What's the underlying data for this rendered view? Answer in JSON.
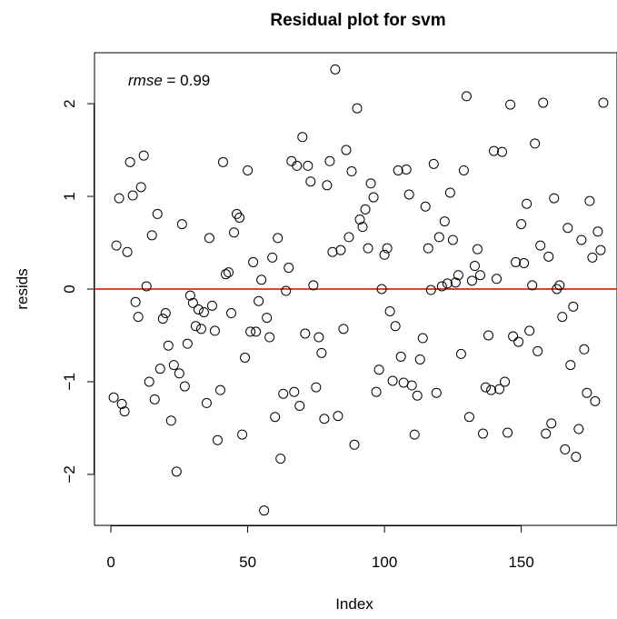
{
  "chart_data": {
    "type": "scatter",
    "title": "Residual plot for svm",
    "xlabel": "Index",
    "ylabel": "resids",
    "xlim": [
      -6,
      185
    ],
    "ylim": [
      -2.55,
      2.55
    ],
    "x_ticks": [
      0,
      50,
      100,
      150
    ],
    "x_tick_labels": [
      "0",
      "50",
      "100",
      "150"
    ],
    "y_ticks": [
      -2,
      -1,
      0,
      1,
      2
    ],
    "y_tick_labels": [
      "−2",
      "−1",
      "0",
      "1",
      "2"
    ],
    "grid": false,
    "reference_line": {
      "y": 0,
      "color": "#e8201c"
    },
    "annotation": {
      "var": "rmse",
      "eq": " = 0.99"
    },
    "point_color": "#000000",
    "x": [
      1,
      2,
      3,
      4,
      5,
      6,
      7,
      8,
      9,
      10,
      11,
      12,
      13,
      14,
      15,
      16,
      17,
      18,
      19,
      20,
      21,
      22,
      23,
      24,
      25,
      26,
      27,
      28,
      29,
      30,
      31,
      32,
      33,
      34,
      35,
      36,
      37,
      38,
      39,
      40,
      41,
      42,
      43,
      44,
      45,
      46,
      47,
      48,
      49,
      50,
      51,
      52,
      53,
      54,
      55,
      56,
      57,
      58,
      59,
      60,
      61,
      62,
      63,
      64,
      65,
      66,
      67,
      68,
      69,
      70,
      71,
      72,
      73,
      74,
      75,
      76,
      77,
      78,
      79,
      80,
      81,
      82,
      83,
      84,
      85,
      86,
      87,
      88,
      89,
      90,
      91,
      92,
      93,
      94,
      95,
      96,
      97,
      98,
      99,
      100,
      101,
      102,
      103,
      104,
      105,
      106,
      107,
      108,
      109,
      110,
      111,
      112,
      113,
      114,
      115,
      116,
      117,
      118,
      119,
      120,
      121,
      122,
      123,
      124,
      125,
      126,
      127,
      128,
      129,
      130,
      131,
      132,
      133,
      134,
      135,
      136,
      137,
      138,
      139,
      140,
      141,
      142,
      143,
      144,
      145,
      146,
      147,
      148,
      149,
      150,
      151,
      152,
      153,
      154,
      155,
      156,
      157,
      158,
      159,
      160,
      161,
      162,
      163,
      164,
      165,
      166,
      167,
      168,
      169,
      170,
      171,
      172,
      173,
      174,
      175,
      176,
      177,
      178,
      179,
      180
    ],
    "y": [
      -1.17,
      0.47,
      0.98,
      -1.24,
      -1.32,
      0.4,
      1.37,
      1.01,
      -0.14,
      -0.3,
      1.1,
      1.44,
      0.03,
      -1.0,
      0.58,
      -1.19,
      0.81,
      -0.86,
      -0.32,
      -0.26,
      -0.61,
      -1.42,
      -0.82,
      -1.97,
      -0.91,
      0.7,
      -1.05,
      -0.59,
      -0.07,
      -0.15,
      -0.4,
      -0.22,
      -0.43,
      -0.25,
      -1.23,
      0.55,
      -0.18,
      -0.45,
      -1.63,
      -1.09,
      1.37,
      0.16,
      0.18,
      -0.26,
      0.61,
      0.81,
      0.77,
      -1.57,
      -0.74,
      1.28,
      -0.46,
      0.29,
      -0.46,
      -0.13,
      0.1,
      -2.39,
      -0.31,
      -0.52,
      0.34,
      -1.38,
      0.55,
      -1.83,
      -1.13,
      -0.02,
      0.23,
      1.38,
      -1.11,
      1.33,
      -1.26,
      1.64,
      -0.48,
      1.33,
      1.16,
      0.04,
      -1.06,
      -0.52,
      -0.69,
      -1.4,
      1.12,
      1.38,
      0.4,
      2.37,
      -1.37,
      0.42,
      -0.43,
      1.5,
      0.56,
      1.27,
      -1.68,
      1.95,
      0.75,
      0.67,
      0.86,
      0.44,
      1.14,
      0.99,
      -1.11,
      -0.87,
      0.0,
      0.37,
      0.44,
      -0.24,
      -0.99,
      -0.4,
      1.28,
      -0.73,
      -1.01,
      1.29,
      1.02,
      -1.04,
      -1.57,
      -1.15,
      -0.76,
      -0.53,
      0.89,
      0.44,
      -0.01,
      1.35,
      -1.12,
      0.56,
      0.03,
      0.73,
      0.06,
      1.04,
      0.53,
      0.07,
      0.15,
      -0.7,
      1.28,
      2.08,
      -1.38,
      0.09,
      0.25,
      0.43,
      0.15,
      -1.56,
      -1.06,
      -0.5,
      -1.09,
      1.49,
      0.11,
      -1.08,
      1.48,
      -1.0,
      -1.55,
      1.99,
      -0.51,
      0.29,
      -0.57,
      0.7,
      0.28,
      0.92,
      -0.45,
      0.04,
      1.57,
      -0.67,
      0.47,
      2.01,
      -1.56,
      0.35,
      -1.45,
      0.98,
      0.0,
      0.04,
      -0.3,
      -1.73,
      0.66,
      -0.82,
      -0.19,
      -1.81,
      -1.51,
      0.53,
      -0.65,
      -1.12,
      0.95,
      0.34,
      -1.21,
      0.62,
      0.42,
      2.01
    ]
  }
}
